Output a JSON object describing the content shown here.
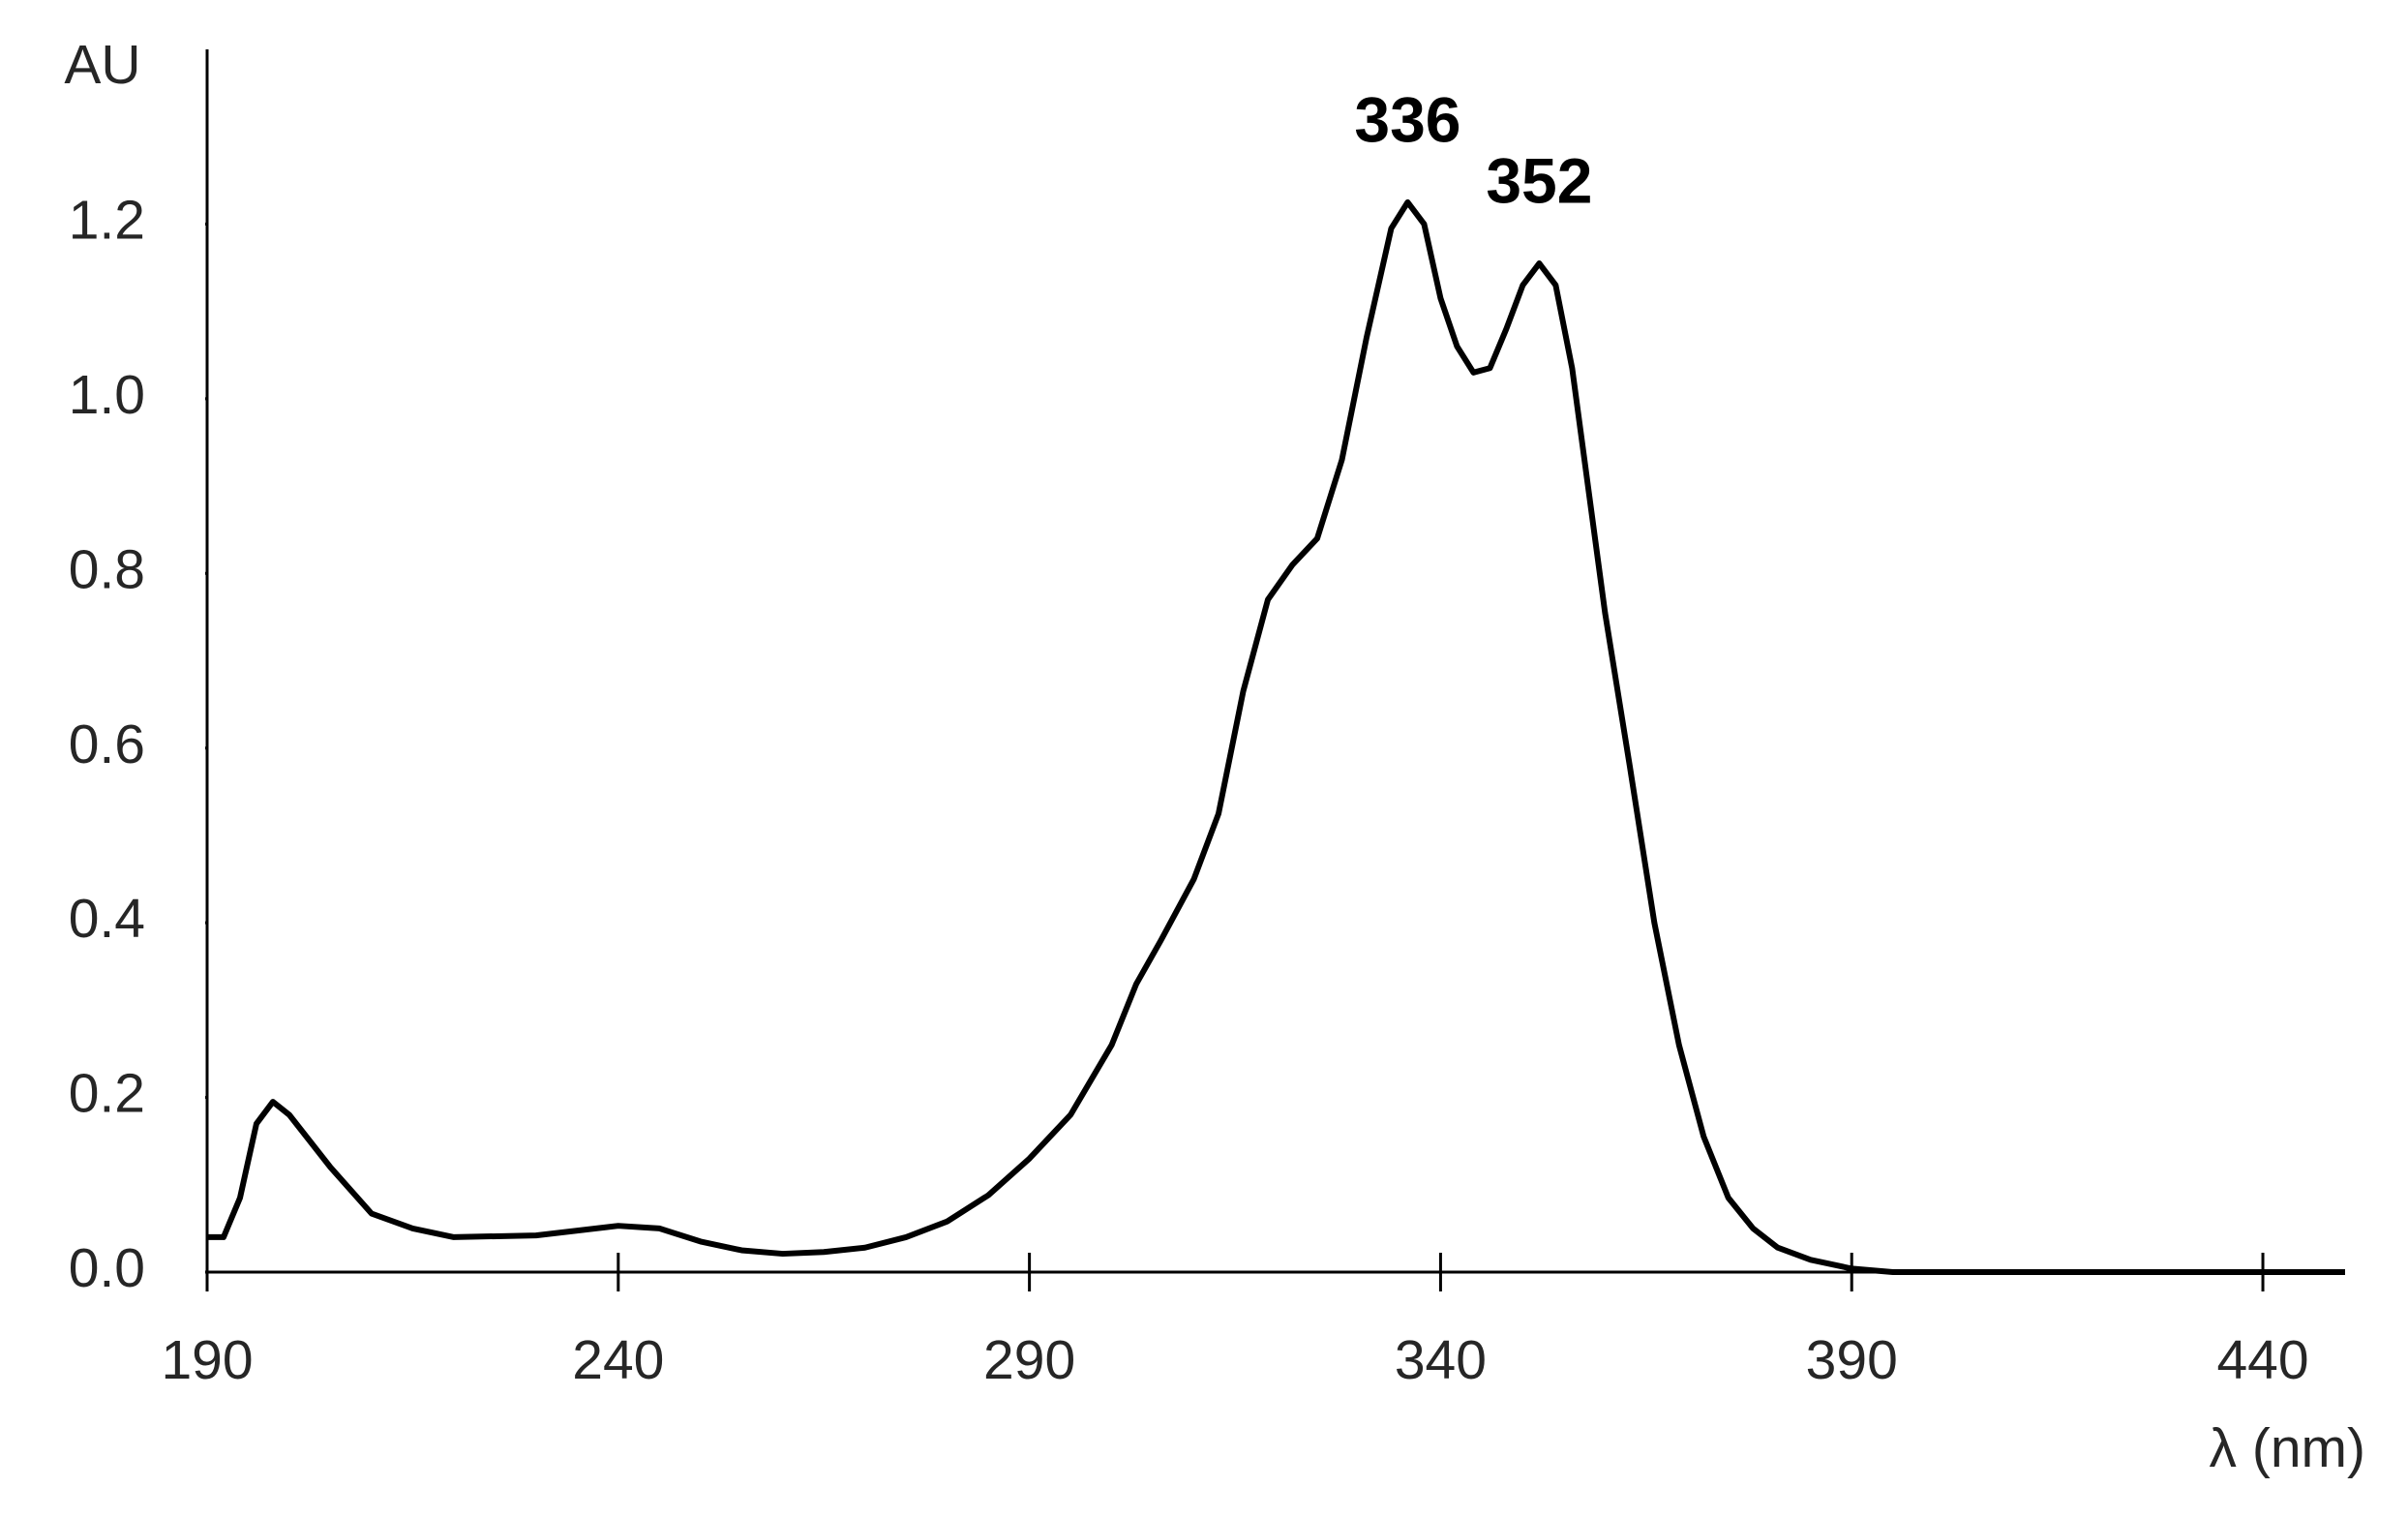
{
  "chart_data": {
    "type": "line",
    "x_label": "λ (nm)",
    "y_label": "AU",
    "x": [
      190,
      192,
      194,
      196,
      198,
      200,
      205,
      210,
      215,
      220,
      230,
      240,
      245,
      250,
      255,
      260,
      265,
      270,
      275,
      280,
      285,
      290,
      295,
      300,
      303,
      306,
      310,
      313,
      316,
      319,
      322,
      325,
      328,
      331,
      334,
      336,
      338,
      340,
      342,
      344,
      346,
      348,
      350,
      352,
      354,
      356,
      358,
      360,
      363,
      366,
      369,
      372,
      375,
      378,
      381,
      385,
      390,
      395,
      400,
      450
    ],
    "values": [
      0.04,
      0.04,
      0.085,
      0.17,
      0.195,
      0.18,
      0.12,
      0.067,
      0.05,
      0.04,
      0.042,
      0.053,
      0.05,
      0.035,
      0.025,
      0.021,
      0.023,
      0.028,
      0.04,
      0.058,
      0.088,
      0.13,
      0.18,
      0.26,
      0.33,
      0.38,
      0.45,
      0.525,
      0.665,
      0.77,
      0.81,
      0.84,
      0.93,
      1.07,
      1.195,
      1.225,
      1.2,
      1.115,
      1.06,
      1.03,
      1.035,
      1.08,
      1.13,
      1.155,
      1.13,
      1.035,
      0.895,
      0.755,
      0.58,
      0.4,
      0.26,
      0.155,
      0.085,
      0.05,
      0.028,
      0.014,
      0.004,
      0,
      0,
      0
    ],
    "color": "#000000",
    "xlim": [
      190,
      450
    ],
    "xticks": [
      190,
      240,
      290,
      340,
      390,
      440
    ],
    "ylim": [
      0,
      1.4
    ],
    "yticks": [
      {
        "value": 0,
        "label": "0.0"
      },
      0.2,
      0.4,
      0.6,
      0.8,
      {
        "value": 1,
        "label": "1.0"
      },
      1.2
    ],
    "annotations": [
      {
        "label": "336",
        "x": 336,
        "y": 1.225
      },
      {
        "label": "352",
        "x": 352,
        "y": 1.155
      }
    ]
  }
}
